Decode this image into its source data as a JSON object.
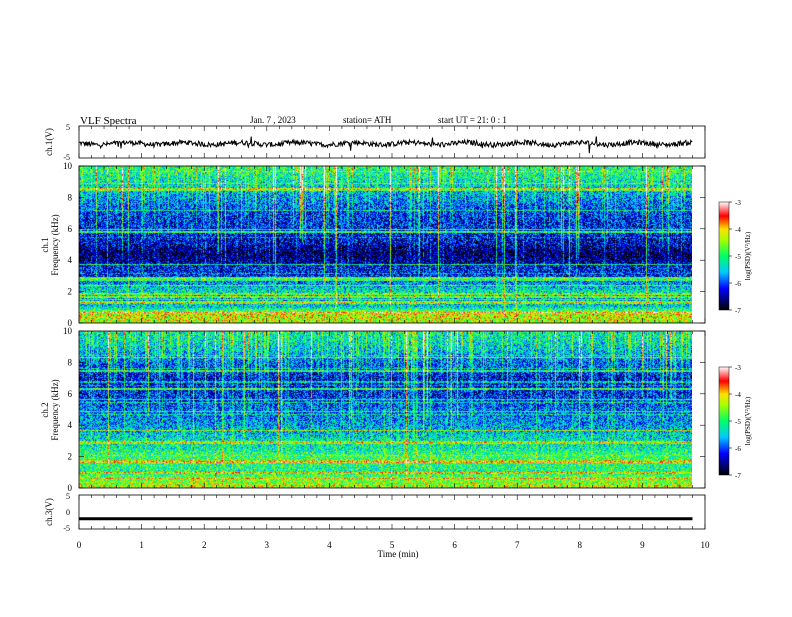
{
  "header": {
    "title": "VLF  Spectra",
    "date": "Jan.  7  , 2023",
    "station": "station= ATH",
    "start": "start  UT  =    21: 0   : 1"
  },
  "chart_data": [
    {
      "type": "line",
      "ylabel": "ch.1(V)",
      "ylim": [
        -5,
        5
      ],
      "yticks": [
        "5",
        "-5"
      ],
      "xlim": [
        0,
        10
      ],
      "data_extent_min": [
        0,
        9.8
      ],
      "series": [
        {
          "values_summary": "noisy waveform around -0.5 V, amplitude about ±1 V with occasional spikes to about ±3 V"
        }
      ]
    },
    {
      "type": "heatmap",
      "ylabel": "ch.1\nFrequency  (kHz)",
      "ylim": [
        0,
        10
      ],
      "yticks": [
        "0",
        "2",
        "4",
        "6",
        "8",
        "10"
      ],
      "xlim": [
        0,
        10
      ],
      "data_extent_min": [
        0,
        9.8
      ],
      "colorbar": {
        "label": "log(PSD)(V²/Hz)",
        "range": [
          -7,
          -3
        ],
        "ticks": [
          "-3",
          "-4",
          "-5",
          "-6",
          "-7"
        ]
      },
      "profile": [
        {
          "f": 0.0,
          "v": -4.4
        },
        {
          "f": 0.5,
          "v": -4.2
        },
        {
          "f": 1.0,
          "v": -5.4
        },
        {
          "f": 1.5,
          "v": -5.6
        },
        {
          "f": 2.0,
          "v": -5.3
        },
        {
          "f": 2.5,
          "v": -5.7
        },
        {
          "f": 3.0,
          "v": -6.2
        },
        {
          "f": 3.5,
          "v": -6.2
        },
        {
          "f": 4.0,
          "v": -6.6
        },
        {
          "f": 4.5,
          "v": -6.7
        },
        {
          "f": 5.0,
          "v": -6.4
        },
        {
          "f": 6.0,
          "v": -6.2
        },
        {
          "f": 7.0,
          "v": -6.1
        },
        {
          "f": 8.0,
          "v": -5.7
        },
        {
          "f": 9.0,
          "v": -5.3
        },
        {
          "f": 10.0,
          "v": -5.0
        }
      ]
    },
    {
      "type": "heatmap",
      "ylabel": "ch.2\nFrequency  (kHz)",
      "ylim": [
        0,
        10
      ],
      "yticks": [
        "0",
        "2",
        "4",
        "6",
        "8",
        "10"
      ],
      "xlim": [
        0,
        10
      ],
      "data_extent_min": [
        0,
        9.8
      ],
      "colorbar": {
        "label": "log(PSD)(V²/Hz)",
        "range": [
          -7,
          -3
        ],
        "ticks": [
          "-3",
          "-4",
          "-5",
          "-6",
          "-7"
        ]
      },
      "profile": [
        {
          "f": 0.0,
          "v": -4.3
        },
        {
          "f": 0.5,
          "v": -4.6
        },
        {
          "f": 1.0,
          "v": -5.1
        },
        {
          "f": 1.5,
          "v": -5.0
        },
        {
          "f": 2.0,
          "v": -4.9
        },
        {
          "f": 2.5,
          "v": -5.2
        },
        {
          "f": 3.0,
          "v": -5.3
        },
        {
          "f": 3.5,
          "v": -5.5
        },
        {
          "f": 4.0,
          "v": -5.7
        },
        {
          "f": 5.0,
          "v": -5.9
        },
        {
          "f": 6.0,
          "v": -6.2
        },
        {
          "f": 7.0,
          "v": -6.3
        },
        {
          "f": 8.0,
          "v": -5.9
        },
        {
          "f": 9.0,
          "v": -5.4
        },
        {
          "f": 10.0,
          "v": -5.2
        }
      ]
    },
    {
      "type": "line",
      "ylabel": "ch.3(V)",
      "ylim": [
        -5,
        5
      ],
      "yticks": [
        "5",
        "0",
        "-5"
      ],
      "xlabel": "Time  (min)",
      "xlim": [
        0,
        10
      ],
      "xticks": [
        "0",
        "1",
        "2",
        "3",
        "4",
        "5",
        "6",
        "7",
        "8",
        "9",
        "10"
      ],
      "data_extent_min": [
        0,
        9.8
      ],
      "series": [
        {
          "values_summary": "flat thick trace at about -2 V"
        }
      ]
    }
  ]
}
